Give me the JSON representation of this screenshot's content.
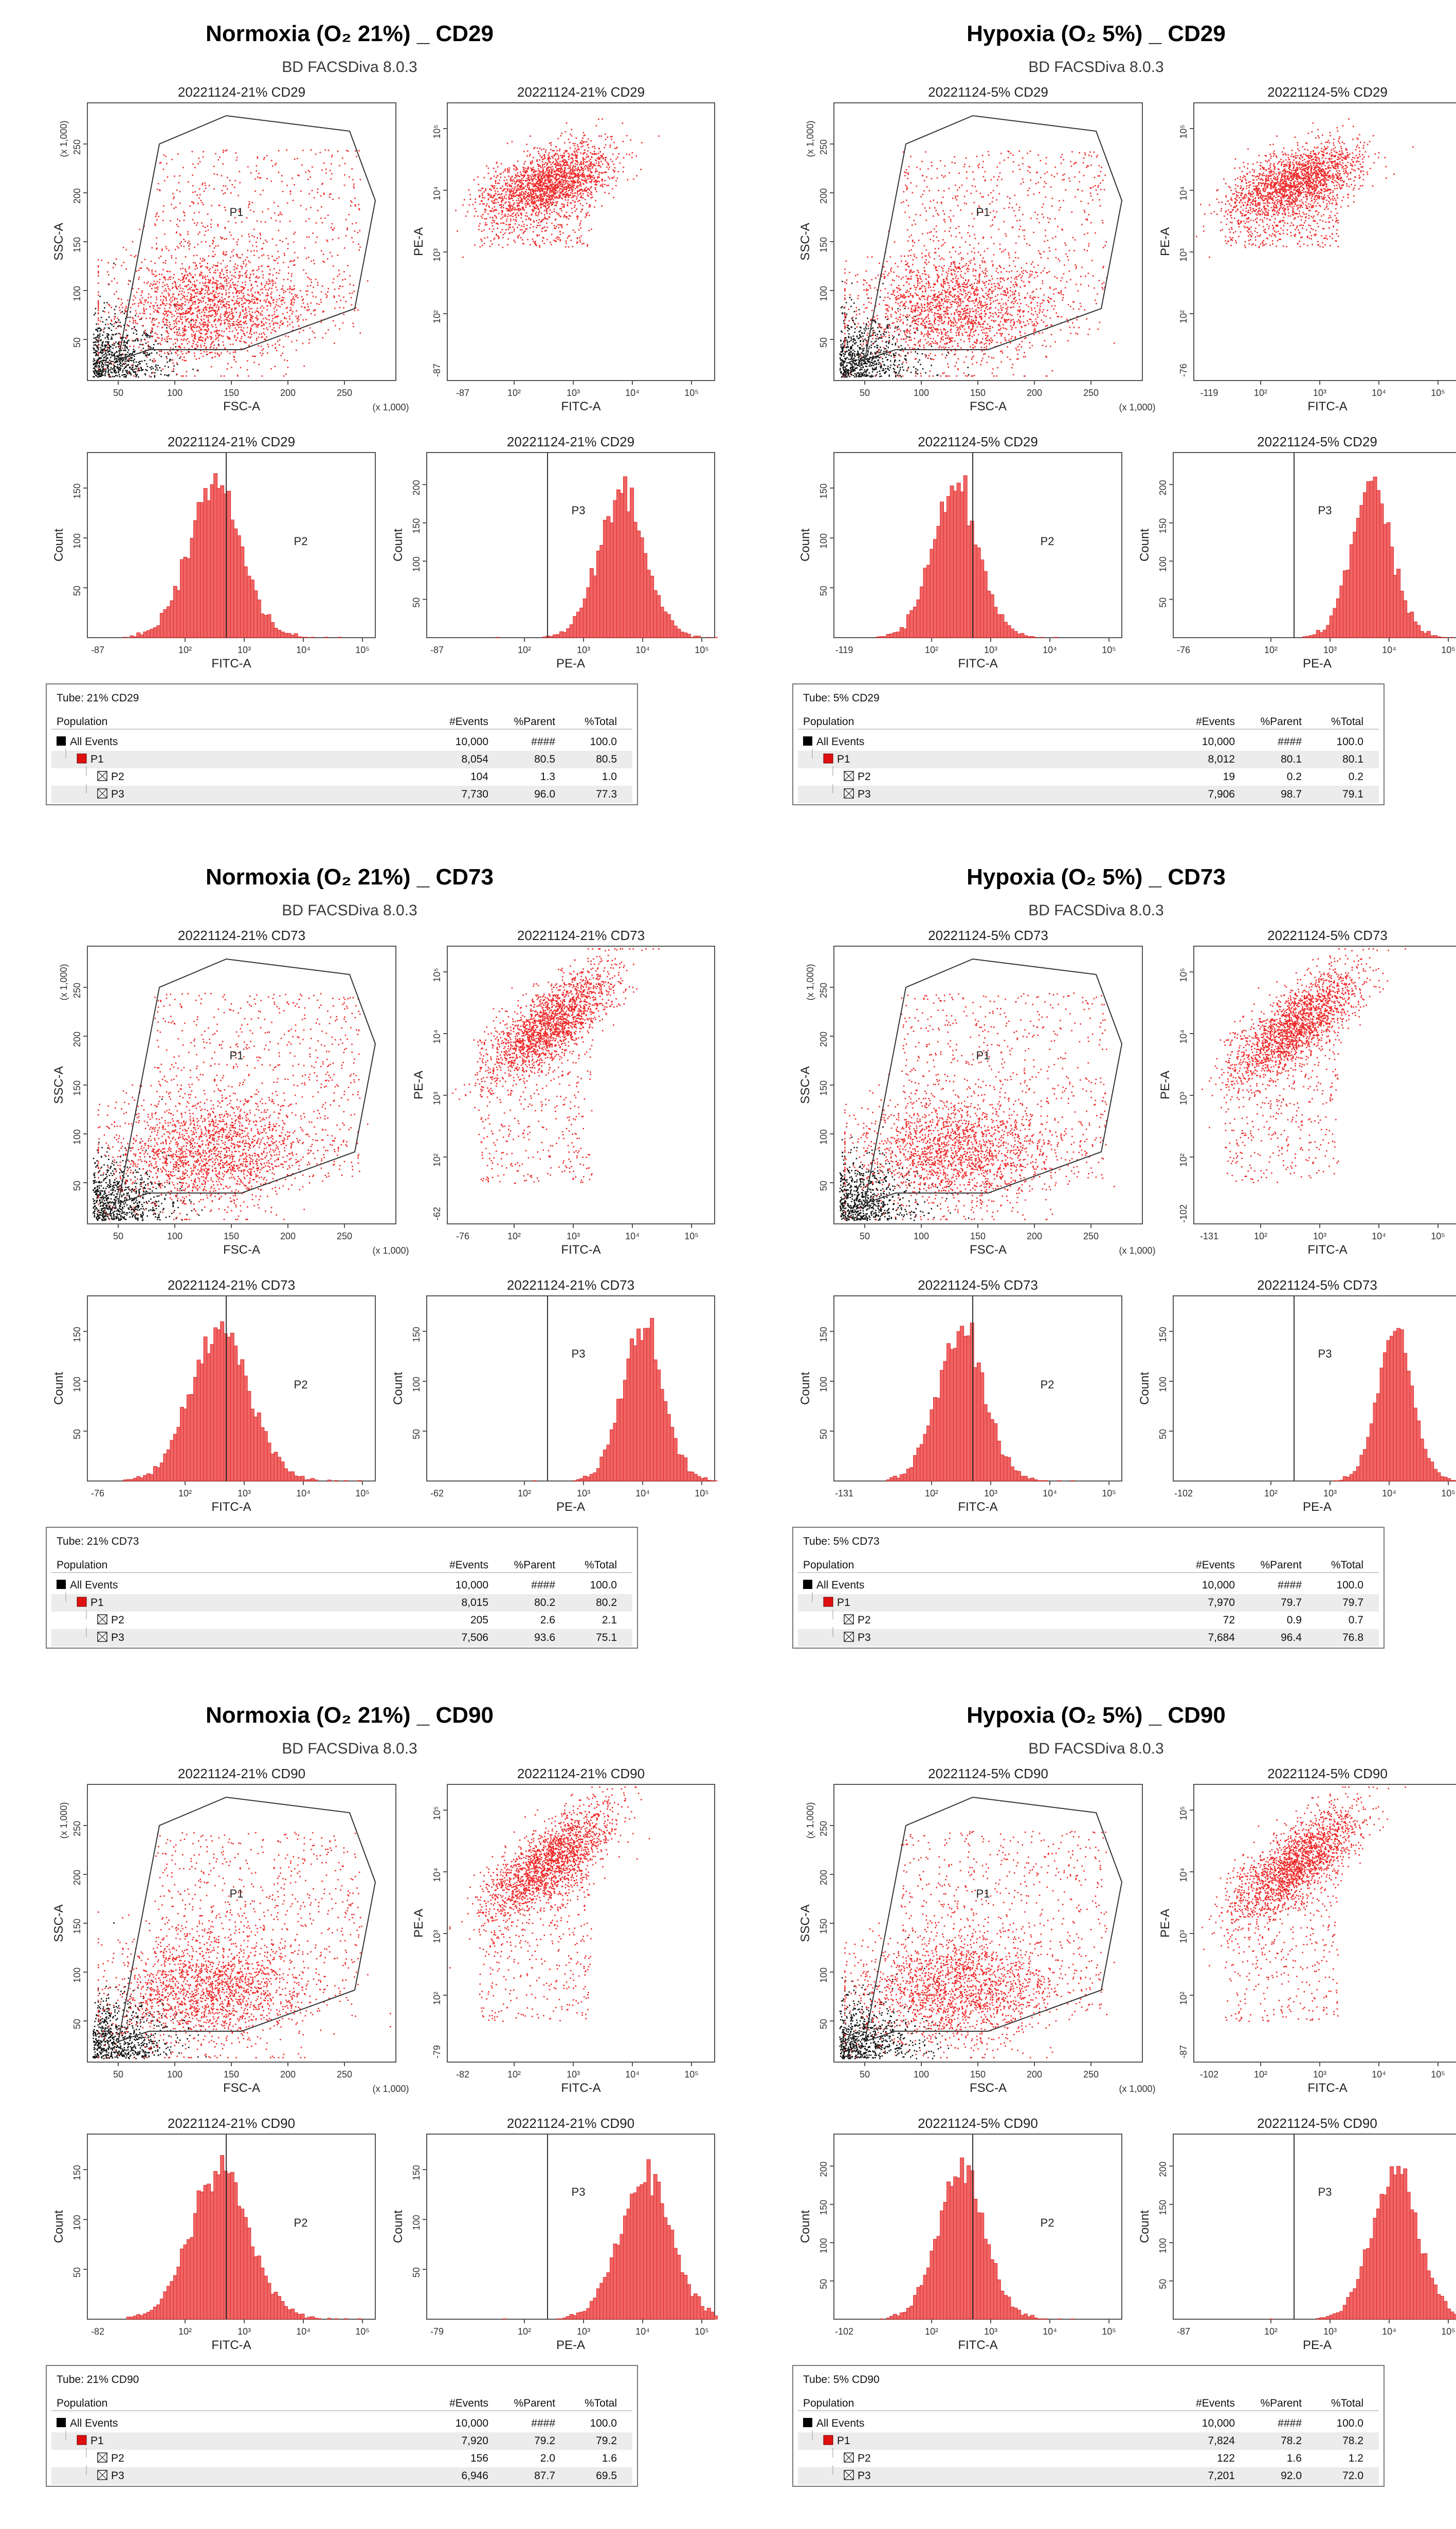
{
  "software": "BD FACSDiva 8.0.3",
  "colors": {
    "event_red": "#ee2a2a",
    "event_black": "#111111",
    "hist_fill": "#f06464",
    "hist_edge": "#d41f1f"
  },
  "table_headers": {
    "population": "Population",
    "events": "#Events",
    "parent": "%Parent",
    "total": "%Total"
  },
  "chart_data": [
    {
      "title": "Normoxia (O₂ 21%) _ CD29",
      "sample": "20221124-21% CD29",
      "tube": "Tube:  21% CD29",
      "scatter_fsc_ssc": {
        "type": "scatter",
        "x_label": "FSC-A",
        "y_label": "SSC-A",
        "x_ticks": [
          "50",
          "100",
          "150",
          "200",
          "250"
        ],
        "y_ticks": [
          "50",
          "100",
          "150",
          "200",
          "250"
        ],
        "x_unit": "(x 1,000)",
        "y_unit": "(x 1,000)",
        "gate": "P1"
      },
      "scatter_fitc_pe": {
        "type": "scatter",
        "x_label": "FITC-A",
        "y_label": "PE-A",
        "x_min": "-87",
        "y_min": "-87",
        "x_ticks": [
          "10²",
          "10³",
          "10⁴",
          "10⁵"
        ],
        "y_ticks": [
          "10²",
          "10³",
          "10⁴",
          "10⁵"
        ]
      },
      "hist_fitc": {
        "type": "histogram",
        "x_label": "FITC-A",
        "y_label": "Count",
        "x_min": "-87",
        "x_ticks": [
          "10²",
          "10³",
          "10⁴",
          "10⁵"
        ],
        "y_ticks": [
          "50",
          "100",
          "150"
        ],
        "gate": "P2",
        "peak_decade": 2.5,
        "spread": 0.45,
        "y_max": 150
      },
      "hist_pe": {
        "type": "histogram",
        "x_label": "PE-A",
        "y_label": "Count",
        "x_min": "-87",
        "x_ticks": [
          "10²",
          "10³",
          "10⁴",
          "10⁵"
        ],
        "y_ticks": [
          "50",
          "100",
          "150",
          "200"
        ],
        "gate": "P3",
        "peak_decade": 3.65,
        "spread": 0.4,
        "y_max": 200
      },
      "table": [
        {
          "population": "All Events",
          "events": "10,000",
          "parent": "####",
          "total": "100.0"
        },
        {
          "population": "P1",
          "events": "8,054",
          "parent": "80.5",
          "total": "80.5"
        },
        {
          "population": "P2",
          "events": "104",
          "parent": "1.3",
          "total": "1.0"
        },
        {
          "population": "P3",
          "events": "7,730",
          "parent": "96.0",
          "total": "77.3"
        }
      ]
    },
    {
      "title": "Hypoxia (O₂ 5%) _ CD29",
      "sample": "20221124-5% CD29",
      "tube": "Tube:  5% CD29",
      "scatter_fsc_ssc": {
        "type": "scatter",
        "x_label": "FSC-A",
        "y_label": "SSC-A",
        "x_ticks": [
          "50",
          "100",
          "150",
          "200",
          "250"
        ],
        "y_ticks": [
          "50",
          "100",
          "150",
          "200",
          "250"
        ],
        "x_unit": "(x 1,000)",
        "y_unit": "(x 1,000)",
        "gate": "P1"
      },
      "scatter_fitc_pe": {
        "type": "scatter",
        "x_label": "FITC-A",
        "y_label": "PE-A",
        "x_min": "-119",
        "y_min": "-76",
        "x_ticks": [
          "10²",
          "10³",
          "10⁴",
          "10⁵"
        ],
        "y_ticks": [
          "10²",
          "10³",
          "10⁴",
          "10⁵"
        ]
      },
      "hist_fitc": {
        "type": "histogram",
        "x_label": "FITC-A",
        "y_label": "Count",
        "x_min": "-119",
        "x_ticks": [
          "10²",
          "10³",
          "10⁴",
          "10⁵"
        ],
        "y_ticks": [
          "50",
          "100",
          "150"
        ],
        "gate": "P2",
        "peak_decade": 2.4,
        "spread": 0.4,
        "y_max": 150
      },
      "hist_pe": {
        "type": "histogram",
        "x_label": "PE-A",
        "y_label": "Count",
        "x_min": "-76",
        "x_ticks": [
          "10²",
          "10³",
          "10⁴",
          "10⁵"
        ],
        "y_ticks": [
          "50",
          "100",
          "150",
          "200"
        ],
        "gate": "P3",
        "peak_decade": 3.7,
        "spread": 0.35,
        "y_max": 200
      },
      "table": [
        {
          "population": "All Events",
          "events": "10,000",
          "parent": "####",
          "total": "100.0"
        },
        {
          "population": "P1",
          "events": "8,012",
          "parent": "80.1",
          "total": "80.1"
        },
        {
          "population": "P2",
          "events": "19",
          "parent": "0.2",
          "total": "0.2"
        },
        {
          "population": "P3",
          "events": "7,906",
          "parent": "98.7",
          "total": "79.1"
        }
      ]
    },
    {
      "title": "Normoxia (O₂ 21%) _ CD73",
      "sample": "20221124-21% CD73",
      "tube": "Tube:  21% CD73",
      "scatter_fsc_ssc": {
        "type": "scatter",
        "x_label": "FSC-A",
        "y_label": "SSC-A",
        "x_ticks": [
          "50",
          "100",
          "150",
          "200",
          "250"
        ],
        "y_ticks": [
          "50",
          "100",
          "150",
          "200",
          "250"
        ],
        "x_unit": "(x 1,000)",
        "y_unit": "(x 1,000)",
        "gate": "P1"
      },
      "scatter_fitc_pe": {
        "type": "scatter",
        "x_label": "FITC-A",
        "y_label": "PE-A",
        "x_min": "-76",
        "y_min": "-62",
        "x_ticks": [
          "10²",
          "10³",
          "10⁴",
          "10⁵"
        ],
        "y_ticks": [
          "10²",
          "10³",
          "10⁴",
          "10⁵"
        ]
      },
      "hist_fitc": {
        "type": "histogram",
        "x_label": "FITC-A",
        "y_label": "Count",
        "x_min": "-76",
        "x_ticks": [
          "10²",
          "10³",
          "10⁴",
          "10⁵"
        ],
        "y_ticks": [
          "50",
          "100",
          "150"
        ],
        "gate": "P2",
        "peak_decade": 2.6,
        "spread": 0.5,
        "y_max": 150
      },
      "hist_pe": {
        "type": "histogram",
        "x_label": "PE-A",
        "y_label": "Count",
        "x_min": "-62",
        "x_ticks": [
          "10²",
          "10³",
          "10⁴",
          "10⁵"
        ],
        "y_ticks": [
          "50",
          "100",
          "150"
        ],
        "gate": "P3",
        "peak_decade": 4.0,
        "spread": 0.35,
        "y_max": 150
      },
      "table": [
        {
          "population": "All Events",
          "events": "10,000",
          "parent": "####",
          "total": "100.0"
        },
        {
          "population": "P1",
          "events": "8,015",
          "parent": "80.2",
          "total": "80.2"
        },
        {
          "population": "P2",
          "events": "205",
          "parent": "2.6",
          "total": "2.1"
        },
        {
          "population": "P3",
          "events": "7,506",
          "parent": "93.6",
          "total": "75.1"
        }
      ]
    },
    {
      "title": "Hypoxia (O₂ 5%) _ CD73",
      "sample": "20221124-5% CD73",
      "tube": "Tube:  5% CD73",
      "scatter_fsc_ssc": {
        "type": "scatter",
        "x_label": "FSC-A",
        "y_label": "SSC-A",
        "x_ticks": [
          "50",
          "100",
          "150",
          "200",
          "250"
        ],
        "y_ticks": [
          "50",
          "100",
          "150",
          "200",
          "250"
        ],
        "x_unit": "(x 1,000)",
        "y_unit": "(x 1,000)",
        "gate": "P1"
      },
      "scatter_fitc_pe": {
        "type": "scatter",
        "x_label": "FITC-A",
        "y_label": "PE-A",
        "x_min": "-131",
        "y_min": "-102",
        "x_ticks": [
          "10²",
          "10³",
          "10⁴",
          "10⁵"
        ],
        "y_ticks": [
          "10²",
          "10³",
          "10⁴",
          "10⁵"
        ]
      },
      "hist_fitc": {
        "type": "histogram",
        "x_label": "FITC-A",
        "y_label": "Count",
        "x_min": "-131",
        "x_ticks": [
          "10²",
          "10³",
          "10⁴",
          "10⁵"
        ],
        "y_ticks": [
          "50",
          "100",
          "150"
        ],
        "gate": "P2",
        "peak_decade": 2.5,
        "spread": 0.4,
        "y_max": 150
      },
      "hist_pe": {
        "type": "histogram",
        "x_label": "PE-A",
        "y_label": "Count",
        "x_min": "-102",
        "x_ticks": [
          "10²",
          "10³",
          "10⁴",
          "10⁵"
        ],
        "y_ticks": [
          "50",
          "100",
          "150"
        ],
        "gate": "P3",
        "peak_decade": 4.1,
        "spread": 0.3,
        "y_max": 150
      },
      "table": [
        {
          "population": "All Events",
          "events": "10,000",
          "parent": "####",
          "total": "100.0"
        },
        {
          "population": "P1",
          "events": "7,970",
          "parent": "79.7",
          "total": "79.7"
        },
        {
          "population": "P2",
          "events": "72",
          "parent": "0.9",
          "total": "0.7"
        },
        {
          "population": "P3",
          "events": "7,684",
          "parent": "96.4",
          "total": "76.8"
        }
      ]
    },
    {
      "title": "Normoxia (O₂ 21%) _ CD90",
      "sample": "20221124-21% CD90",
      "tube": "Tube:  21% CD90",
      "scatter_fsc_ssc": {
        "type": "scatter",
        "x_label": "FSC-A",
        "y_label": "SSC-A",
        "x_ticks": [
          "50",
          "100",
          "150",
          "200",
          "250"
        ],
        "y_ticks": [
          "50",
          "100",
          "150",
          "200",
          "250"
        ],
        "x_unit": "(x 1,000)",
        "y_unit": "(x 1,000)",
        "gate": "P1"
      },
      "scatter_fitc_pe": {
        "type": "scatter",
        "x_label": "FITC-A",
        "y_label": "PE-A",
        "x_min": "-82",
        "y_min": "-79",
        "x_ticks": [
          "10²",
          "10³",
          "10⁴",
          "10⁵"
        ],
        "y_ticks": [
          "10²",
          "10³",
          "10⁴",
          "10⁵"
        ]
      },
      "hist_fitc": {
        "type": "histogram",
        "x_label": "FITC-A",
        "y_label": "Count",
        "x_min": "-82",
        "x_ticks": [
          "10²",
          "10³",
          "10⁴",
          "10⁵"
        ],
        "y_ticks": [
          "50",
          "100",
          "150"
        ],
        "gate": "P2",
        "peak_decade": 2.6,
        "spread": 0.5,
        "y_max": 150
      },
      "hist_pe": {
        "type": "histogram",
        "x_label": "PE-A",
        "y_label": "Count",
        "x_min": "-79",
        "x_ticks": [
          "10²",
          "10³",
          "10⁴",
          "10⁵"
        ],
        "y_ticks": [
          "50",
          "100",
          "150"
        ],
        "gate": "P3",
        "peak_decade": 4.05,
        "spread": 0.45,
        "y_max": 150
      },
      "table": [
        {
          "population": "All Events",
          "events": "10,000",
          "parent": "####",
          "total": "100.0"
        },
        {
          "population": "P1",
          "events": "7,920",
          "parent": "79.2",
          "total": "79.2"
        },
        {
          "population": "P2",
          "events": "156",
          "parent": "2.0",
          "total": "1.6"
        },
        {
          "population": "P3",
          "events": "6,946",
          "parent": "87.7",
          "total": "69.5"
        }
      ]
    },
    {
      "title": "Hypoxia (O₂ 5%) _ CD90",
      "sample": "20221124-5% CD90",
      "tube": "Tube:  5% CD90",
      "scatter_fsc_ssc": {
        "type": "scatter",
        "x_label": "FSC-A",
        "y_label": "SSC-A",
        "x_ticks": [
          "50",
          "100",
          "150",
          "200",
          "250"
        ],
        "y_ticks": [
          "50",
          "100",
          "150",
          "200",
          "250"
        ],
        "x_unit": "(x 1,000)",
        "y_unit": "(x 1,000)",
        "gate": "P1"
      },
      "scatter_fitc_pe": {
        "type": "scatter",
        "x_label": "FITC-A",
        "y_label": "PE-A",
        "x_min": "-102",
        "y_min": "-87",
        "x_ticks": [
          "10²",
          "10³",
          "10⁴",
          "10⁵"
        ],
        "y_ticks": [
          "10²",
          "10³",
          "10⁴",
          "10⁵"
        ]
      },
      "hist_fitc": {
        "type": "histogram",
        "x_label": "FITC-A",
        "y_label": "Count",
        "x_min": "-102",
        "x_ticks": [
          "10²",
          "10³",
          "10⁴",
          "10⁵"
        ],
        "y_ticks": [
          "50",
          "100",
          "150",
          "200"
        ],
        "gate": "P2",
        "peak_decade": 2.5,
        "spread": 0.4,
        "y_max": 200
      },
      "hist_pe": {
        "type": "histogram",
        "x_label": "PE-A",
        "y_label": "Count",
        "x_min": "-87",
        "x_ticks": [
          "10²",
          "10³",
          "10⁴",
          "10⁵"
        ],
        "y_ticks": [
          "50",
          "100",
          "150",
          "200"
        ],
        "gate": "P3",
        "peak_decade": 4.1,
        "spread": 0.4,
        "y_max": 200
      },
      "table": [
        {
          "population": "All Events",
          "events": "10,000",
          "parent": "####",
          "total": "100.0"
        },
        {
          "population": "P1",
          "events": "7,824",
          "parent": "78.2",
          "total": "78.2"
        },
        {
          "population": "P2",
          "events": "122",
          "parent": "1.6",
          "total": "1.2"
        },
        {
          "population": "P3",
          "events": "7,201",
          "parent": "92.0",
          "total": "72.0"
        }
      ]
    }
  ]
}
